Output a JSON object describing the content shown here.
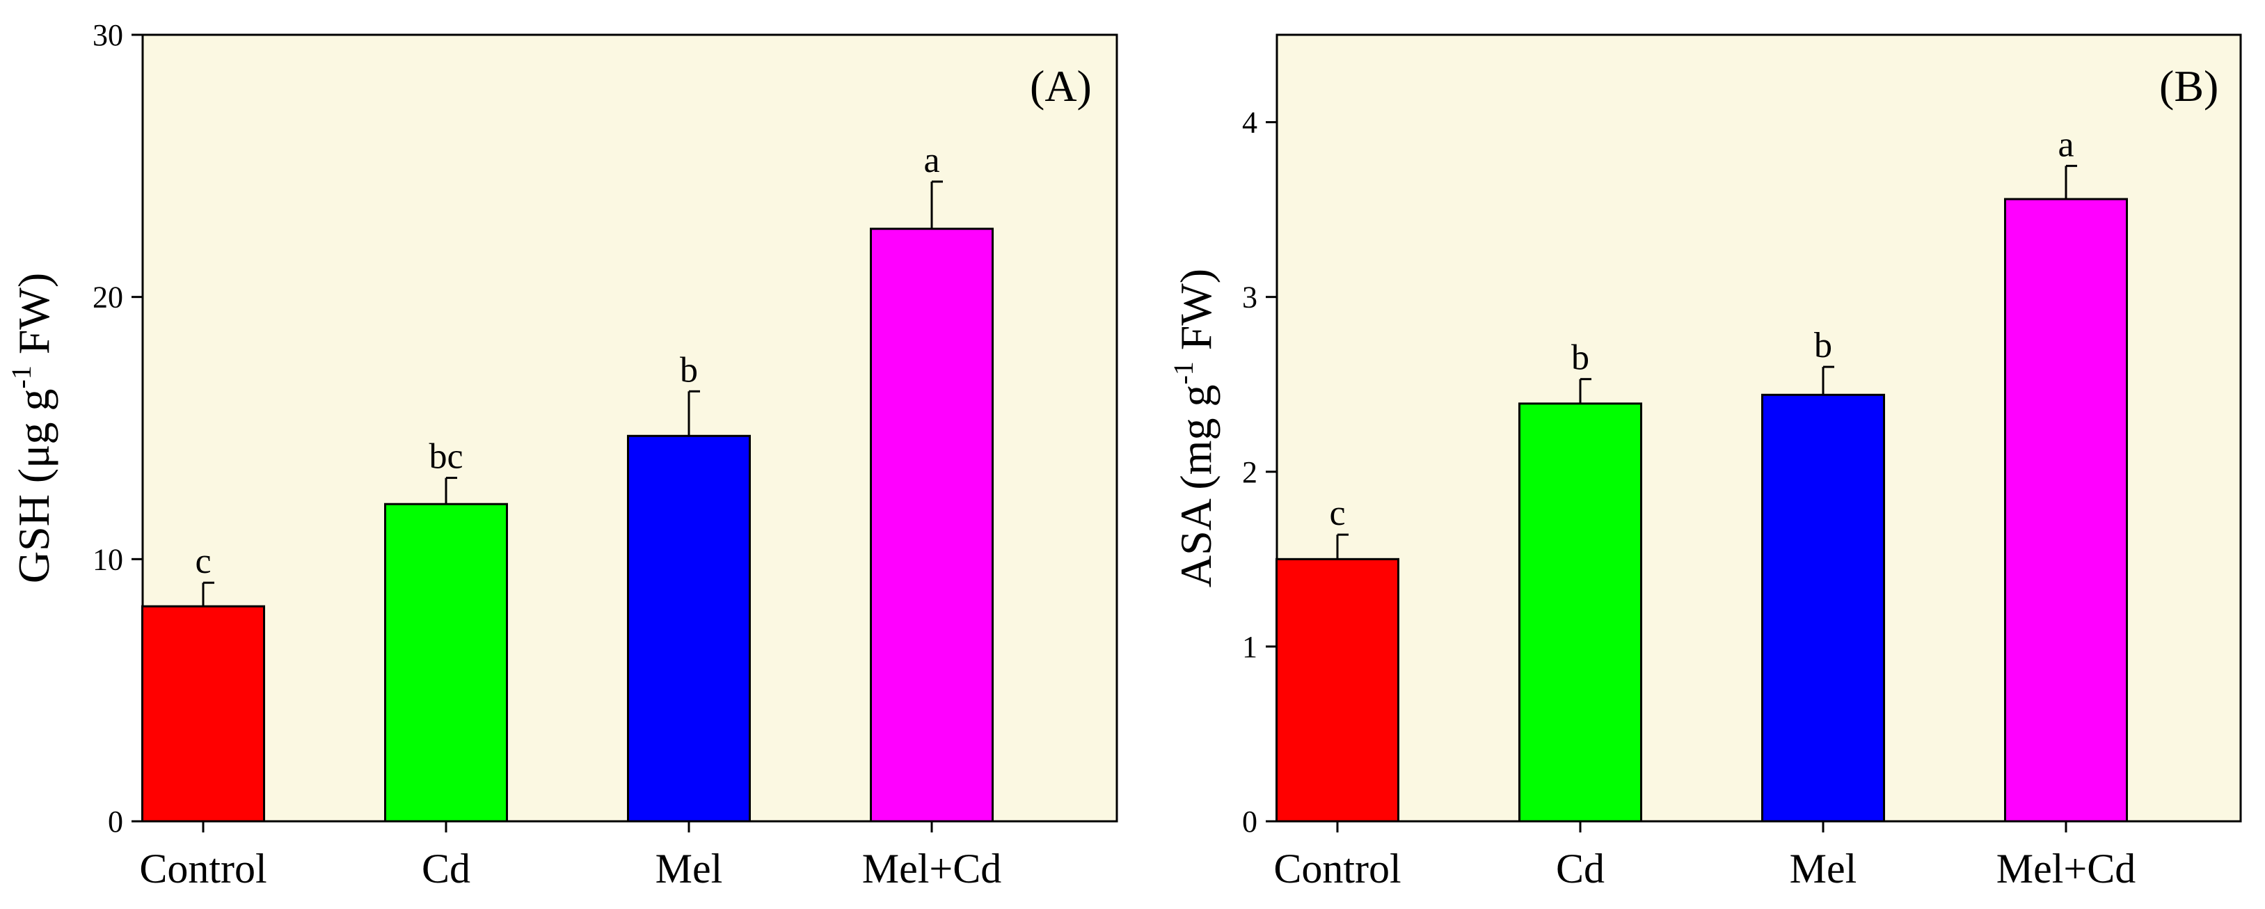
{
  "chart_data": [
    {
      "type": "bar",
      "panel_label": "(A)",
      "categories": [
        "Control",
        "Cd",
        "Mel",
        "Mel+Cd"
      ],
      "values": [
        8.2,
        12.1,
        14.7,
        22.6
      ],
      "errors": [
        0.9,
        1.0,
        1.7,
        1.8
      ],
      "significance": [
        "c",
        "bc",
        "b",
        "a"
      ],
      "bar_colors": [
        "#ff0000",
        "#00ff00",
        "#0000ff",
        "#ff00ff"
      ],
      "ylabel": "GSH (μg g",
      "ylabel_sup": "-1",
      "ylabel_tail": " FW)",
      "ylim": [
        0,
        30
      ],
      "yticks": [
        0,
        10,
        20,
        30
      ],
      "background": "#fbf8e2",
      "grid": false
    },
    {
      "type": "bar",
      "panel_label": "(B)",
      "categories": [
        "Control",
        "Cd",
        "Mel",
        "Mel+Cd"
      ],
      "values": [
        1.5,
        2.39,
        2.44,
        3.56
      ],
      "errors": [
        0.14,
        0.14,
        0.16,
        0.19
      ],
      "significance": [
        "c",
        "b",
        "b",
        "a"
      ],
      "bar_colors": [
        "#ff0000",
        "#00ff00",
        "#0000ff",
        "#ff00ff"
      ],
      "ylabel": "ASA (mg g",
      "ylabel_sup": "-1",
      "ylabel_tail": " FW)",
      "ylim": [
        0,
        4.5
      ],
      "yticks": [
        0,
        1,
        2,
        3,
        4
      ],
      "background": "#fbf8e2",
      "grid": false
    }
  ]
}
